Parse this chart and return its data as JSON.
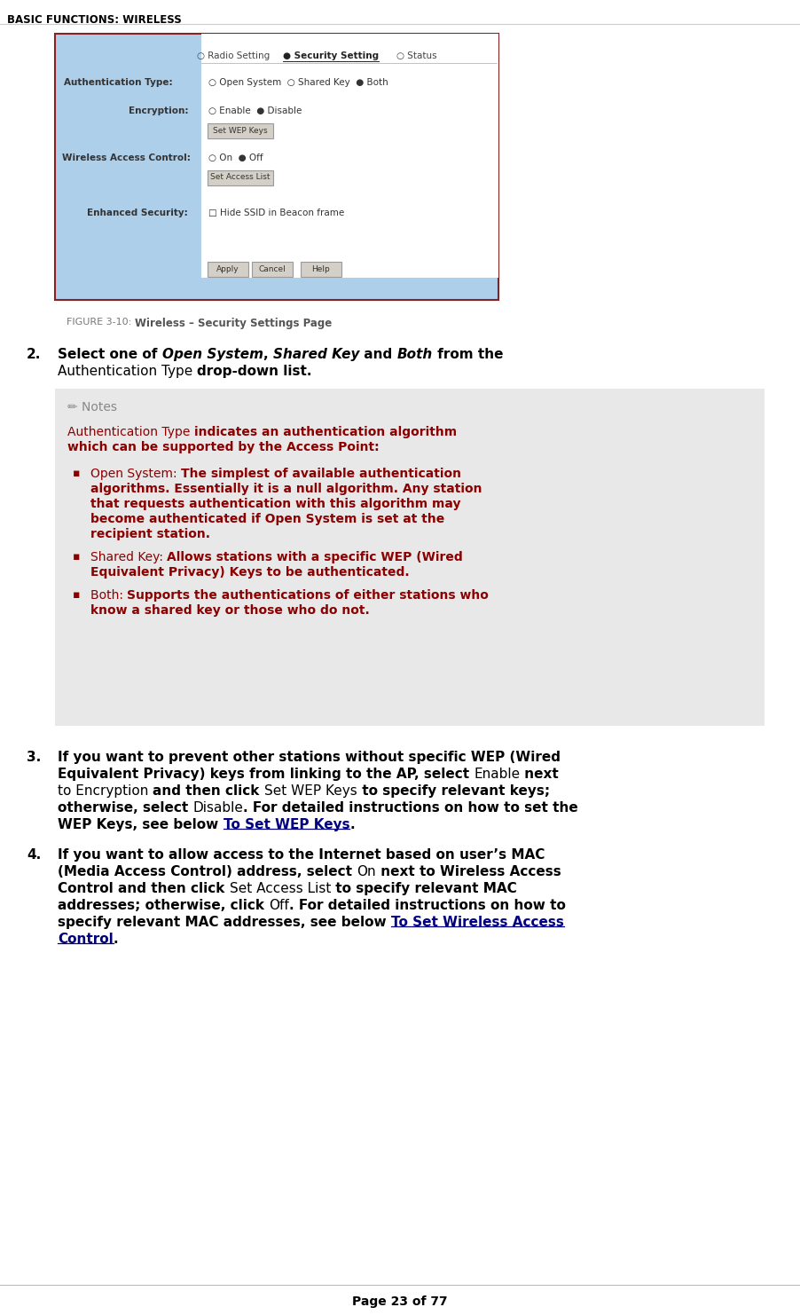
{
  "page_bg": "#ffffff",
  "header_text": "BASIC FUNCTIONS: WIRELESS",
  "figure_caption_prefix": "FIGURE 3-10: ",
  "figure_caption_main": "Wireless – Security Settings Page",
  "notes_bg": "#e8e8e8",
  "dark_red": "#8b0000",
  "navy": "#000080",
  "black": "#000000",
  "gray": "#888888",
  "page_footer": "Page 23 of 77",
  "image_box_color": "#aecfea",
  "image_border_color": "#8b2020"
}
